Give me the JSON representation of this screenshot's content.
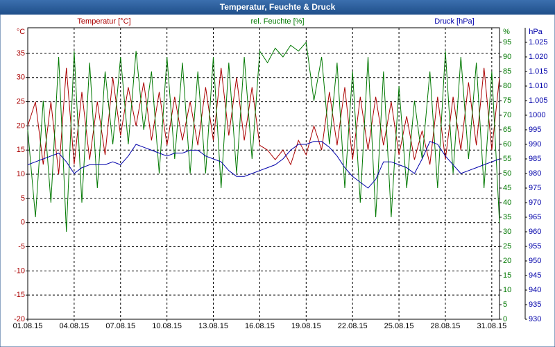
{
  "chart_data": {
    "type": "line",
    "title": "Temperatur, Feuchte & Druck",
    "x": [
      0,
      0.5,
      1,
      1.5,
      2,
      2.5,
      3,
      3.5,
      4,
      4.5,
      5,
      5.5,
      6,
      6.5,
      7,
      7.5,
      8,
      8.5,
      9,
      9.5,
      10,
      10.5,
      11,
      11.5,
      12,
      12.5,
      13,
      13.5,
      14,
      14.5,
      15,
      15.5,
      16,
      16.5,
      17,
      17.5,
      18,
      18.5,
      19,
      19.5,
      20,
      20.5,
      21,
      21.5,
      22,
      22.5,
      23,
      23.5,
      24,
      24.5,
      25,
      25.5,
      26,
      26.5,
      27,
      27.5,
      28,
      28.5,
      29,
      29.5,
      30,
      30.5
    ],
    "xlim": [
      0,
      30.5
    ],
    "xticks": [
      {
        "value": 0,
        "label": "01.08.15"
      },
      {
        "value": 3,
        "label": "04.08.15"
      },
      {
        "value": 6,
        "label": "07.08.15"
      },
      {
        "value": 9,
        "label": "10.08.15"
      },
      {
        "value": 12,
        "label": "13.08.15"
      },
      {
        "value": 15,
        "label": "16.08.15"
      },
      {
        "value": 18,
        "label": "19.08.15"
      },
      {
        "value": 21,
        "label": "22.08.15"
      },
      {
        "value": 24,
        "label": "25.08.15"
      },
      {
        "value": 27,
        "label": "28.08.15"
      },
      {
        "value": 30,
        "label": "31.08.15"
      }
    ],
    "y_label": "°C",
    "y2_label": "%",
    "y3_label": "hPa",
    "ylim": [
      -20,
      40.3
    ],
    "yticks": [
      -20,
      -15,
      -10,
      -5,
      0,
      5,
      10,
      15,
      20,
      25,
      30,
      35
    ],
    "y2lim": [
      0,
      100
    ],
    "y2ticks": [
      0,
      5,
      10,
      15,
      20,
      25,
      30,
      35,
      40,
      45,
      50,
      55,
      60,
      65,
      70,
      75,
      80,
      85,
      90,
      95
    ],
    "y3lim": [
      930,
      1030
    ],
    "y3ticks": [
      930,
      935,
      940,
      945,
      950,
      955,
      960,
      965,
      970,
      975,
      980,
      985,
      990,
      995,
      1000,
      {
        "value": 1005,
        "label": "1.005"
      },
      {
        "value": 1010,
        "label": "1.010"
      },
      {
        "value": 1015,
        "label": "1.015"
      },
      {
        "value": 1020,
        "label": "1.020"
      },
      {
        "value": 1025,
        "label": "1.025"
      }
    ],
    "grid": true,
    "series": [
      {
        "name": "Temperatur [°C]",
        "color": "#aa0000",
        "axis": "y",
        "values": [
          20,
          25,
          12,
          25,
          10,
          32,
          12,
          27,
          13,
          25,
          14,
          30,
          18,
          28,
          20,
          29,
          17,
          27,
          16,
          26,
          17,
          25,
          16,
          28,
          17,
          32,
          18,
          30,
          17,
          28,
          16,
          15,
          13,
          15,
          12,
          17,
          14,
          20,
          15,
          27,
          16,
          28,
          13,
          26,
          15,
          26,
          16,
          25,
          14,
          22,
          13,
          19,
          12,
          26,
          13,
          26,
          15,
          29,
          16,
          32,
          15,
          30
        ]
      },
      {
        "name": "rel. Feuchte [%]",
        "color": "#007800",
        "axis": "y2",
        "values": [
          65,
          35,
          75,
          40,
          90,
          30,
          92,
          40,
          88,
          45,
          85,
          60,
          90,
          60,
          92,
          65,
          85,
          50,
          90,
          55,
          88,
          50,
          85,
          50,
          90,
          45,
          88,
          50,
          90,
          55,
          92,
          88,
          93,
          90,
          94,
          92,
          95,
          75,
          90,
          60,
          88,
          45,
          85,
          40,
          90,
          35,
          85,
          35,
          80,
          45,
          75,
          55,
          85,
          45,
          92,
          50,
          90,
          55,
          88,
          45,
          85,
          33
        ]
      },
      {
        "name": "Druck [hPa]",
        "color": "#0000aa",
        "axis": "y3",
        "values": [
          983,
          984,
          985,
          986,
          987,
          984,
          980,
          982,
          983,
          983,
          983,
          984,
          983,
          986,
          990,
          989,
          988,
          987,
          986,
          987,
          987,
          988,
          988,
          986,
          985,
          984,
          981,
          979,
          979,
          980,
          981,
          982,
          983,
          985,
          988,
          990,
          990,
          991,
          991,
          989,
          986,
          982,
          979,
          977,
          975,
          978,
          984,
          984,
          983,
          982,
          980,
          985,
          991,
          990,
          986,
          983,
          980,
          981,
          982,
          983,
          984,
          985
        ]
      }
    ]
  }
}
